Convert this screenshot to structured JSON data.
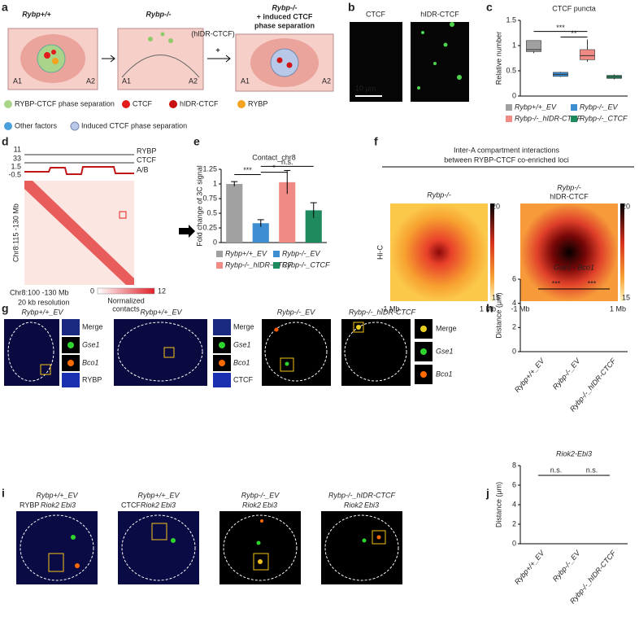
{
  "figure": {
    "letters": [
      "a",
      "b",
      "c",
      "d",
      "e",
      "f",
      "g",
      "h",
      "i",
      "j"
    ],
    "a": {
      "genotypes": [
        "Rybp+/+",
        "Rybp-/-",
        "Rybp-/-"
      ],
      "induced": [
        "+ induced CTCF",
        "phase separation"
      ],
      "construct": "(hIDR-CTCF)",
      "plus": "+",
      "compartments": [
        "A1",
        "A2"
      ],
      "legend": [
        "RYBP-CTCF phase separation",
        "CTCF",
        "hIDR-CTCF",
        "RYBP",
        "Other factors",
        "Induced CTCF phase separation"
      ]
    },
    "b": {
      "labels": [
        "CTCF",
        "hIDR-CTCF"
      ],
      "scale": "10 μm"
    },
    "d": {
      "track_max": [
        "11",
        "33"
      ],
      "ab_range": [
        "1.5",
        "-0.5"
      ],
      "tracks": [
        "RYBP",
        "CTCF",
        "A/B"
      ],
      "y_label": "Chr8:115 -130 Mb",
      "x_label": "Chr8:100 -130 Mb",
      "resolution": "20 kb resolution",
      "scale": [
        "0",
        "12"
      ],
      "scale_label": [
        "Normalized",
        "contacts"
      ]
    },
    "f": {
      "title": [
        "Inter-A compartment interactions",
        "between RYBP-CTCF co-enriched loci"
      ],
      "maps": [
        "Rybp-/-",
        "Rybp-/-"
      ],
      "construct": "hIDR-CTCF",
      "row_label": "Hi-C",
      "x_ends": [
        "-1 Mb",
        "1 Mb"
      ],
      "scale": [
        "20",
        "15"
      ]
    },
    "g": {
      "titles": [
        "Rybp+/+_EV",
        "Rybp+/+_EV",
        "Rybp-/-_EV",
        "Rybp-/-_hIDR-CTCF"
      ],
      "insets": [
        "Merge",
        "Gse1",
        "Bco1",
        "RYBP",
        "CTCF"
      ]
    },
    "i": {
      "titles": [
        "Rybp+/+_EV",
        "Rybp+/+_EV",
        "Rybp-/-_EV",
        "Rybp-/-_hIDR-CTCF"
      ],
      "channels": [
        "RYBP",
        "CTCF",
        "Riok2",
        "Ebi3"
      ]
    }
  },
  "chart_data": [
    {
      "type": "box",
      "title": "CTCF puncta",
      "y_label": "Relative number",
      "ylim": [
        0,
        1.5
      ],
      "yticks": [
        0,
        0.5,
        1,
        1.5
      ],
      "series": [
        {
          "name": "Rybp+/+_EV",
          "color": "#a0a0a0",
          "min": 0.85,
          "q1": 0.88,
          "median": 0.92,
          "q3": 1.1,
          "max": 1.1
        },
        {
          "name": "Rybp-/-_EV",
          "color": "#3d8fd1",
          "min": 0.38,
          "q1": 0.39,
          "median": 0.43,
          "q3": 0.47,
          "max": 0.48
        },
        {
          "name": "Rybp-/-_hIDR-CTCF",
          "color": "#f08a84",
          "min": 0.68,
          "q1": 0.72,
          "median": 0.8,
          "q3": 0.92,
          "max": 1.12
        },
        {
          "name": "Rybp-/-_CTCF",
          "color": "#1f8a5e",
          "min": 0.33,
          "q1": 0.35,
          "median": 0.38,
          "q3": 0.41,
          "max": 0.43
        }
      ],
      "significance": [
        "***",
        "**"
      ]
    },
    {
      "type": "bar",
      "title": "Contact_chr8",
      "y_label": "Fold change of 3C signal",
      "ylim": [
        0,
        1.25
      ],
      "yticks": [
        0,
        0.25,
        0.5,
        0.75,
        1,
        1.25
      ],
      "categories": [
        "Rybp+/+_EV",
        "Rybp-/-_EV",
        "Rybp-/-_hIDR-CTCF",
        "Rybp-/-_CTCF"
      ],
      "values": [
        1.0,
        0.33,
        1.03,
        0.55
      ],
      "errors": [
        0.04,
        0.06,
        0.2,
        0.13
      ],
      "colors": [
        "#a0a0a0",
        "#3d8fd1",
        "#f08a84",
        "#1f8a5e"
      ],
      "significance": [
        "***",
        "*",
        "n.s."
      ]
    },
    {
      "type": "strip",
      "title": "Gse1 - Bco1",
      "y_label": "Distance (μm)",
      "ylim": [
        0,
        6
      ],
      "yticks": [
        0,
        2,
        4,
        6
      ],
      "categories": [
        "Rybp+/+_EV",
        "Rybp-/-_EV",
        "Rybp-/-_hIDR-CTCF"
      ],
      "colors": [
        "#a0a0a0",
        "#3d8fd1",
        "#f08a84"
      ],
      "significance": [
        "***",
        "***"
      ]
    },
    {
      "type": "strip",
      "title": "Riok2-Ebi3",
      "y_label": "Distance (μm)",
      "ylim": [
        0,
        8
      ],
      "yticks": [
        0,
        2,
        4,
        6,
        8
      ],
      "categories": [
        "Rybp+/+_EV",
        "Rybp-/-_EV",
        "Rybp-/-_hIDR-CTCF"
      ],
      "colors": [
        "#a0a0a0",
        "#3d8fd1",
        "#f08a84"
      ],
      "significance": [
        "n.s.",
        "n.s."
      ]
    }
  ]
}
